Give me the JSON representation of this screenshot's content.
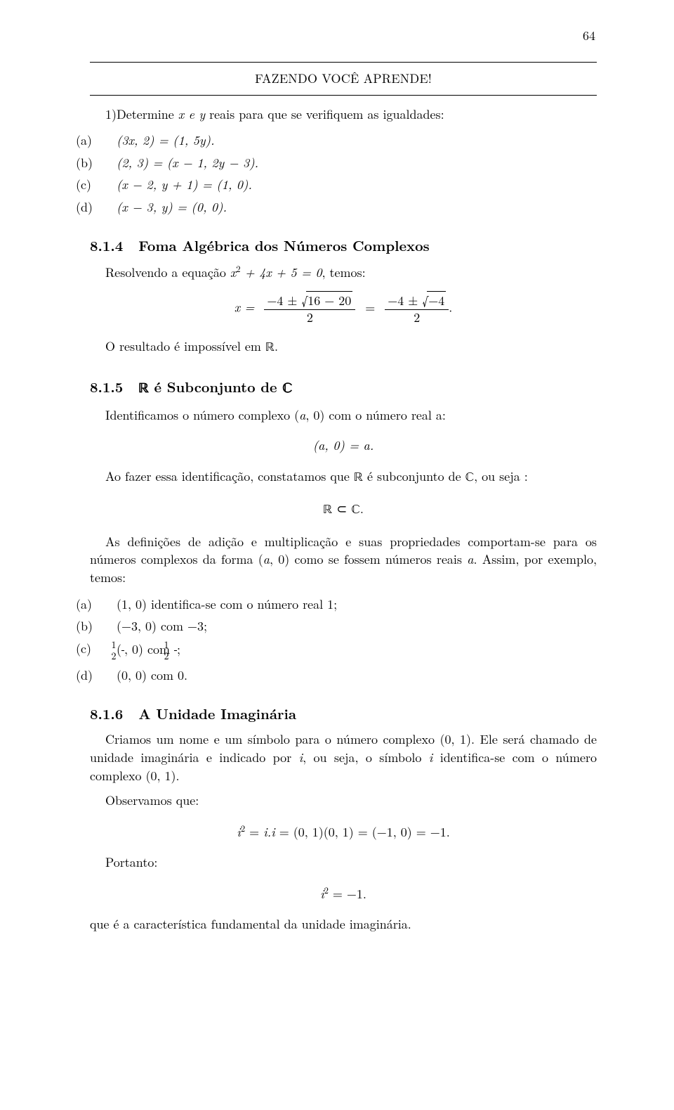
{
  "page_number": "64",
  "banner": {
    "title": "FAZENDO VOCÊ APRENDE!"
  },
  "intro": {
    "line1_prefix": "1)Determine ",
    "line1_xy": "x e y",
    "line1_suffix": " reais para que se verifiquem as igualdades:"
  },
  "q1": {
    "a_lab": "(a)",
    "a": "(3x, 2) = (1, 5y).",
    "b_lab": "(b)",
    "b": "(2, 3) = (x − 1, 2y − 3).",
    "c_lab": "(c)",
    "c": "(x − 2, y + 1) = (1, 0).",
    "d_lab": "(d)",
    "d": "(x − 3, y) = (0, 0)."
  },
  "sec814": {
    "num": "8.1.4",
    "title": "Foma Algébrica dos Números Complexos",
    "intro_pre": "Resolvendo a equação ",
    "intro_eq": "x",
    "intro_eq2": " + 4x + 5 = 0",
    "intro_post": ", temos:",
    "eq_lhs": "x =",
    "eq_num1_a": "−4 ± ",
    "eq_rad1": "16 − 20",
    "eq_den": "2",
    "eq_mid": "=",
    "eq_num2_a": "−4 ± ",
    "eq_rad2": "−4",
    "eq_end": ".",
    "outro_pre": "O resultado é impossível em ",
    "outro_set": "ℝ",
    "outro_post": "."
  },
  "sec815": {
    "num": "8.1.5",
    "title_set": "ℝ",
    "title_mid": " é Subconjunto de ",
    "title_set2": "ℂ",
    "p1_a": "Identificamos o número complexo (",
    "p1_a_var": "a",
    "p1_b": ", 0) com o número real a:",
    "eq": "(a, 0) = a.",
    "p2_a": "Ao fazer essa identificação, constatamos que ",
    "p2_R": "ℝ",
    "p2_b": " é subconjunto de ",
    "p2_C": "ℂ",
    "p2_c": ", ou seja :",
    "eq2_R": "ℝ",
    "eq2_sub": " ⊂ ",
    "eq2_C": "ℂ",
    "eq2_dot": ".",
    "p3": "As definições de adição e multiplicação e suas propriedades comportam-se para os números complexos da forma (",
    "p3_a": "a",
    "p3b": ", 0) como se fossem números reais ",
    "p3_a2": "a",
    "p3c": ". Assim, por exemplo, temos:",
    "items": {
      "a_lab": "(a)",
      "a": "(1, 0) identifica-se com o número real 1;",
      "b_lab": "(b)",
      "b": "(−3, 0) com −3;",
      "c_lab": "(c)",
      "c_pre": "(",
      "c_num1": "1",
      "c_den1": "2",
      "c_mid": ", 0) com ",
      "c_num2": "1",
      "c_den2": "2",
      "c_post": ";",
      "d_lab": "(d)",
      "d": "(0, 0) com 0."
    }
  },
  "sec816": {
    "num": "8.1.6",
    "title": "A Unidade Imaginária",
    "p1": "Criamos um nome e um símbolo para o número complexo (0, 1).  Ele será chamado de unidade imaginária e indicado por ",
    "p1_i1": "i",
    "p1_b": ", ou seja, o símbolo ",
    "p1_i2": "i",
    "p1_c": " identifica-se com o número complexo (0, 1).",
    "p2": "Observamos que:",
    "eq_lhs_i": "i",
    "eq_a": " = ",
    "eq_i2": "i.i",
    "eq_b": " = (0, 1)(0, 1) = (−1, 0) = −1.",
    "p3": "Portanto:",
    "eq2_i": "i",
    "eq2_rest": " = −1.",
    "p4": "que é a característica fundamental da unidade imaginária."
  }
}
